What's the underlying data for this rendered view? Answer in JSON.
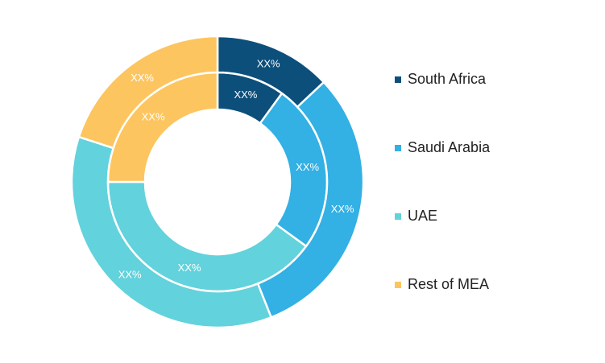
{
  "chart_data": {
    "type": "pie",
    "title": "",
    "legend_position": "right",
    "categories": [
      "South Africa",
      "Saudi Arabia",
      "UAE",
      "Rest of MEA"
    ],
    "colors": [
      "#0d4f7b",
      "#33b0e4",
      "#62d2dc",
      "#fdc55f"
    ],
    "series": [
      {
        "values": [
          10,
          25,
          40,
          25
        ],
        "labels": [
          "XX%",
          "XX%",
          "XX%",
          "XX%"
        ]
      },
      {
        "values": [
          13,
          31,
          36,
          20
        ],
        "labels": [
          "XX%",
          "XX%",
          "XX%",
          "XX%"
        ]
      }
    ],
    "legend": [
      "South Africa",
      "Saudi Arabia",
      "UAE",
      "Rest of MEA"
    ]
  }
}
